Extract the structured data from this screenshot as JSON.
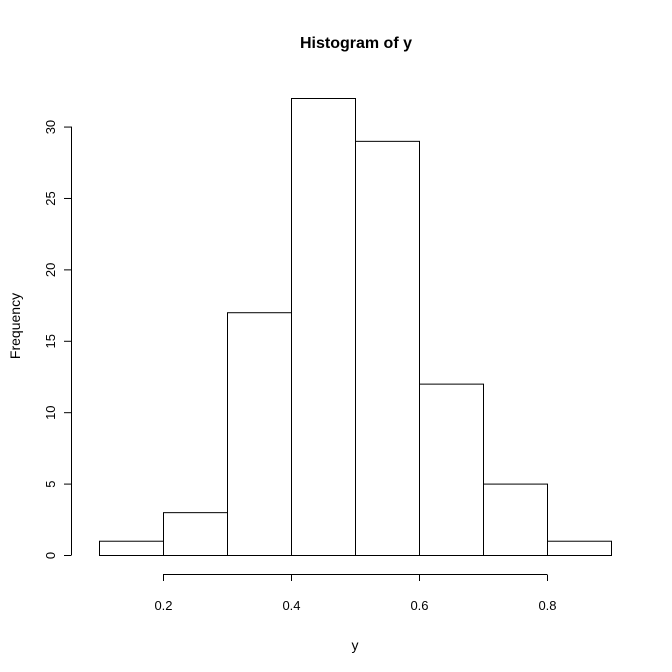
{
  "chart_data": {
    "type": "bar",
    "title": "Histogram of y",
    "xlabel": "y",
    "ylabel": "Frequency",
    "bins": [
      {
        "start": 0.1,
        "end": 0.2,
        "count": 1
      },
      {
        "start": 0.2,
        "end": 0.3,
        "count": 3
      },
      {
        "start": 0.3,
        "end": 0.4,
        "count": 17
      },
      {
        "start": 0.4,
        "end": 0.5,
        "count": 32
      },
      {
        "start": 0.5,
        "end": 0.6,
        "count": 29
      },
      {
        "start": 0.6,
        "end": 0.7,
        "count": 12
      },
      {
        "start": 0.7,
        "end": 0.8,
        "count": 5
      },
      {
        "start": 0.8,
        "end": 0.9,
        "count": 1
      }
    ],
    "x_ticks": [
      {
        "value": 0.2,
        "label": "0.2"
      },
      {
        "value": 0.4,
        "label": "0.4"
      },
      {
        "value": 0.6,
        "label": "0.6"
      },
      {
        "value": 0.8,
        "label": "0.8"
      }
    ],
    "y_ticks": [
      {
        "value": 0,
        "label": "0"
      },
      {
        "value": 5,
        "label": "5"
      },
      {
        "value": 10,
        "label": "10"
      },
      {
        "value": 15,
        "label": "15"
      },
      {
        "value": 20,
        "label": "20"
      },
      {
        "value": 25,
        "label": "25"
      },
      {
        "value": 30,
        "label": "30"
      }
    ],
    "xlim": [
      0.1,
      0.9
    ],
    "ylim": [
      0,
      32
    ],
    "grid": false,
    "colors": {
      "bar_fill": "#ffffff",
      "bar_stroke": "#000000",
      "background": "#ffffff"
    }
  }
}
